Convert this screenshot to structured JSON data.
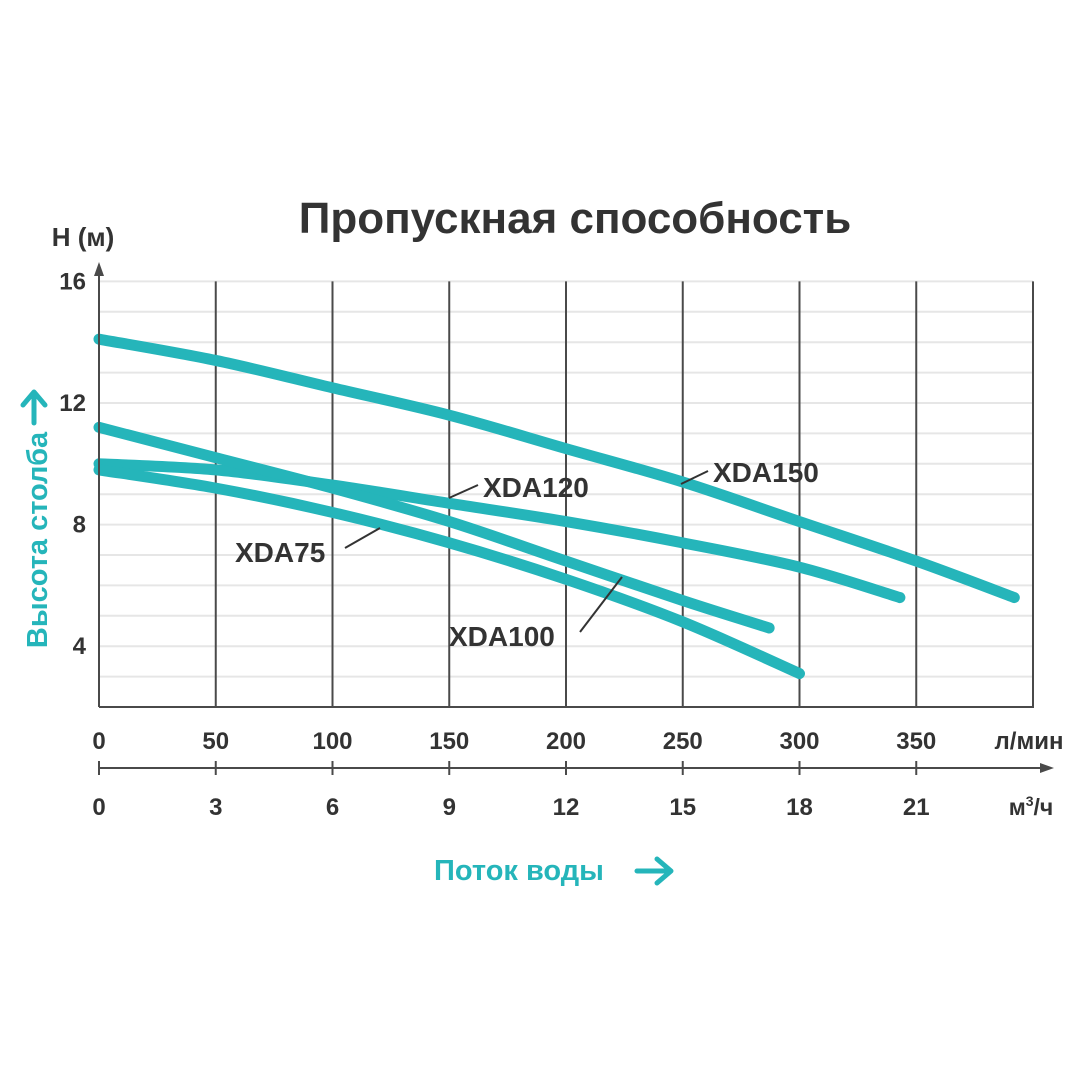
{
  "colors": {
    "accent": "#25B5BA",
    "text": "#333333",
    "grid_minor": "#E6E6E6",
    "grid_major": "#4A4A4A",
    "background": "#FFFFFF"
  },
  "chart_data": {
    "type": "line",
    "title": "Пропускная способность",
    "ylabel": "Н (м)",
    "ylabel_side": "Высота столба",
    "xlabel": "Поток воды",
    "y_ticks": [
      "16",
      "12",
      "8",
      "4"
    ],
    "y_tick_values": [
      16,
      12,
      8,
      4
    ],
    "ylim": [
      2,
      16
    ],
    "x_axis_lpm": {
      "unit": "л/мин",
      "ticks": [
        "0",
        "50",
        "100",
        "150",
        "200",
        "250",
        "300",
        "350"
      ],
      "tick_values": [
        0,
        50,
        100,
        150,
        200,
        250,
        300,
        350
      ],
      "range": [
        0,
        400
      ]
    },
    "x_axis_m3h": {
      "unit_base": "м",
      "unit_sup": "3",
      "unit_tail": "/ч",
      "ticks": [
        "0",
        "3",
        "6",
        "9",
        "12",
        "15",
        "18",
        "21"
      ],
      "tick_values": [
        0,
        3,
        6,
        9,
        12,
        15,
        18,
        21
      ]
    },
    "grid": true,
    "series": [
      {
        "name": "XDA150",
        "x": [
          0,
          50,
          100,
          150,
          200,
          250,
          300,
          350,
          392
        ],
        "y": [
          14.1,
          13.4,
          12.5,
          11.6,
          10.5,
          9.4,
          8.1,
          6.8,
          5.6
        ]
      },
      {
        "name": "XDA120",
        "x": [
          0,
          50,
          100,
          150,
          200,
          250,
          300,
          343
        ],
        "y": [
          10.0,
          9.8,
          9.3,
          8.7,
          8.1,
          7.4,
          6.6,
          5.6
        ]
      },
      {
        "name": "XDA100",
        "x": [
          0,
          50,
          100,
          150,
          200,
          250,
          300
        ],
        "y": [
          9.8,
          9.2,
          8.4,
          7.4,
          6.2,
          4.8,
          3.1
        ]
      },
      {
        "name": "XDA75",
        "x": [
          0,
          50,
          100,
          150,
          200,
          250,
          287
        ],
        "y": [
          11.2,
          10.2,
          9.2,
          8.1,
          6.8,
          5.5,
          4.6
        ]
      }
    ]
  }
}
